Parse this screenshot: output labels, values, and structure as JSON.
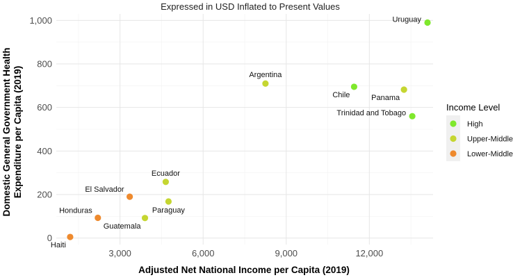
{
  "chart_data": {
    "type": "scatter",
    "subtitle": "Expressed in USD Inflated to Present Values",
    "xlabel": "Adjusted Net National Income per Capita (2019)",
    "ylabel_lines": [
      "Domestic General Government Health",
      "Expenditure per Capita (2019)"
    ],
    "xlim": [
      700,
      14300
    ],
    "ylim": [
      -30,
      1030
    ],
    "x_ticks": [
      3000,
      6000,
      9000,
      12000
    ],
    "x_tick_labels": [
      "3,000",
      "6,000",
      "9,000",
      "12,000"
    ],
    "y_ticks": [
      0,
      200,
      400,
      600,
      800,
      1000
    ],
    "y_tick_labels": [
      "0",
      "200",
      "400",
      "600",
      "800",
      "1,000"
    ],
    "grid": true,
    "legend": {
      "title": "Income Level",
      "placement": "right",
      "entries": [
        {
          "label": "High",
          "color": "#7fe82c"
        },
        {
          "label": "Upper-Middle",
          "color": "#c5d631"
        },
        {
          "label": "Lower-Middle",
          "color": "#ee8a2e"
        }
      ]
    },
    "points": [
      {
        "label": "Uruguay",
        "x": 14100,
        "y": 990,
        "group": "High",
        "label_pos": "left"
      },
      {
        "label": "Chile",
        "x": 11450,
        "y": 695,
        "group": "High",
        "label_pos": "below-left"
      },
      {
        "label": "Trinidad and Tobago",
        "x": 13550,
        "y": 560,
        "group": "High",
        "label_pos": "left"
      },
      {
        "label": "Panama",
        "x": 13250,
        "y": 682,
        "group": "Upper-Middle",
        "label_pos": "below-left"
      },
      {
        "label": "Argentina",
        "x": 8250,
        "y": 710,
        "group": "Upper-Middle",
        "label_pos": "above"
      },
      {
        "label": "Ecuador",
        "x": 4650,
        "y": 258,
        "group": "Upper-Middle",
        "label_pos": "above"
      },
      {
        "label": "Paraguay",
        "x": 4750,
        "y": 168,
        "group": "Upper-Middle",
        "label_pos": "below"
      },
      {
        "label": "Guatemala",
        "x": 3900,
        "y": 92,
        "group": "Upper-Middle",
        "label_pos": "below-left"
      },
      {
        "label": "El Salvador",
        "x": 3350,
        "y": 190,
        "group": "Lower-Middle",
        "label_pos": "above-left"
      },
      {
        "label": "Honduras",
        "x": 2200,
        "y": 93,
        "group": "Lower-Middle",
        "label_pos": "above-left"
      },
      {
        "label": "Haiti",
        "x": 1200,
        "y": 5,
        "group": "Lower-Middle",
        "label_pos": "below-left"
      }
    ]
  }
}
